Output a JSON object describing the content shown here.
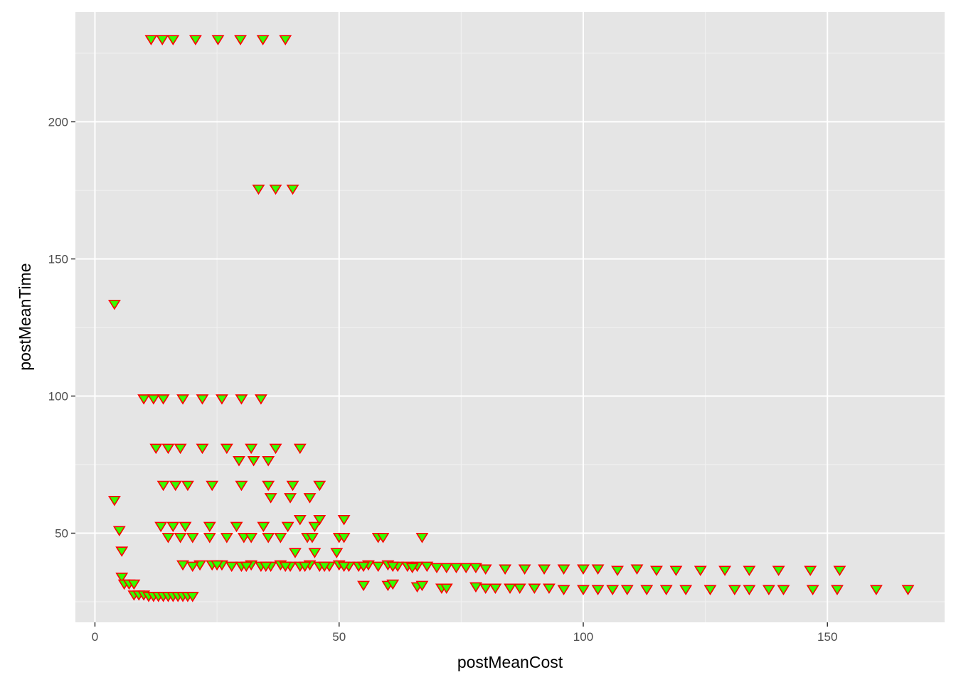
{
  "chart_data": {
    "type": "scatter",
    "title": "",
    "xlabel": "postMeanCost",
    "ylabel": "postMeanTime",
    "xlim": [
      -4,
      174
    ],
    "ylim": [
      17.5,
      240
    ],
    "x_ticks": [
      0,
      50,
      100,
      150
    ],
    "y_ticks": [
      50,
      100,
      150,
      200
    ],
    "x_tick_labels": [
      "0",
      "50",
      "100",
      "150"
    ],
    "y_tick_labels": [
      "50",
      "100",
      "150",
      "200"
    ],
    "grid": true,
    "legend": "none",
    "marker": "triangle-down",
    "colors": {
      "panel_background": "#E5E5E5",
      "grid_major": "#FFFFFF",
      "grid_minor": "#F2F2F2",
      "point_fill": "#33FF00",
      "point_stroke": "#FF0000",
      "tick_mark": "#333333"
    },
    "points": [
      [
        11.5,
        230
      ],
      [
        13.8,
        230
      ],
      [
        16,
        230
      ],
      [
        20.6,
        230
      ],
      [
        25.2,
        230
      ],
      [
        29.8,
        230
      ],
      [
        34.4,
        230
      ],
      [
        39,
        230
      ],
      [
        33.5,
        175.5
      ],
      [
        37,
        175.5
      ],
      [
        40.5,
        175.5
      ],
      [
        4,
        133.5
      ],
      [
        10,
        99
      ],
      [
        12,
        99
      ],
      [
        14,
        99
      ],
      [
        18,
        99
      ],
      [
        22,
        99
      ],
      [
        26,
        99
      ],
      [
        30,
        99
      ],
      [
        34,
        99
      ],
      [
        12.5,
        81
      ],
      [
        15,
        81
      ],
      [
        17.5,
        81
      ],
      [
        22,
        81
      ],
      [
        27,
        81
      ],
      [
        32,
        81
      ],
      [
        37,
        81
      ],
      [
        42,
        81
      ],
      [
        29.5,
        76.5
      ],
      [
        32.5,
        76.5
      ],
      [
        35.5,
        76.5
      ],
      [
        14,
        67.5
      ],
      [
        16.5,
        67.5
      ],
      [
        19,
        67.5
      ],
      [
        24,
        67.5
      ],
      [
        30,
        67.5
      ],
      [
        35.5,
        67.5
      ],
      [
        40.5,
        67.5
      ],
      [
        46,
        67.5
      ],
      [
        36,
        63
      ],
      [
        40,
        63
      ],
      [
        44,
        63
      ],
      [
        4,
        62
      ],
      [
        42,
        55
      ],
      [
        46,
        55
      ],
      [
        51,
        55
      ],
      [
        13.5,
        52.5
      ],
      [
        16,
        52.5
      ],
      [
        18.5,
        52.5
      ],
      [
        23.5,
        52.5
      ],
      [
        29,
        52.5
      ],
      [
        34.5,
        52.5
      ],
      [
        39.5,
        52.5
      ],
      [
        45,
        52.5
      ],
      [
        5,
        51
      ],
      [
        15,
        48.5
      ],
      [
        17.5,
        48.5
      ],
      [
        20,
        48.5
      ],
      [
        23.5,
        48.5
      ],
      [
        27,
        48.5
      ],
      [
        30.5,
        48.5
      ],
      [
        32,
        48.5
      ],
      [
        35.5,
        48.5
      ],
      [
        38,
        48.5
      ],
      [
        43.5,
        48.5
      ],
      [
        44.5,
        48.5
      ],
      [
        50,
        48.5
      ],
      [
        51,
        48.5
      ],
      [
        58,
        48.5
      ],
      [
        59,
        48.5
      ],
      [
        67,
        48.5
      ],
      [
        5.5,
        43.5
      ],
      [
        41,
        43
      ],
      [
        45,
        43
      ],
      [
        49.5,
        43
      ],
      [
        18,
        38.5
      ],
      [
        21.5,
        38.5
      ],
      [
        24,
        38.5
      ],
      [
        26,
        38.5
      ],
      [
        28,
        38
      ],
      [
        30,
        38
      ],
      [
        32,
        38.5
      ],
      [
        34,
        38
      ],
      [
        36,
        38
      ],
      [
        38,
        38.5
      ],
      [
        40,
        38
      ],
      [
        42,
        38
      ],
      [
        44,
        38.5
      ],
      [
        46,
        38
      ],
      [
        48,
        38
      ],
      [
        50,
        38.5
      ],
      [
        52,
        38
      ],
      [
        54,
        38
      ],
      [
        56,
        38.5
      ],
      [
        58,
        38
      ],
      [
        60,
        38.5
      ],
      [
        62,
        38
      ],
      [
        64,
        38
      ],
      [
        66,
        38
      ],
      [
        68,
        38
      ],
      [
        70,
        37.5
      ],
      [
        72,
        37.5
      ],
      [
        74,
        37.5
      ],
      [
        76,
        37.5
      ],
      [
        78,
        37.5
      ],
      [
        80,
        37
      ],
      [
        84,
        37
      ],
      [
        88,
        37
      ],
      [
        92,
        37
      ],
      [
        96,
        37
      ],
      [
        100,
        37
      ],
      [
        103,
        37
      ],
      [
        107,
        36.5
      ],
      [
        111,
        37
      ],
      [
        115,
        36.5
      ],
      [
        119,
        36.5
      ],
      [
        124,
        36.5
      ],
      [
        129,
        36.5
      ],
      [
        134,
        36.5
      ],
      [
        140,
        36.5
      ],
      [
        146.5,
        36.5
      ],
      [
        152.5,
        36.5
      ],
      [
        20,
        38
      ],
      [
        25,
        38.5
      ],
      [
        31,
        38
      ],
      [
        35,
        38
      ],
      [
        39,
        38
      ],
      [
        43,
        38
      ],
      [
        47,
        38
      ],
      [
        51,
        38
      ],
      [
        55,
        38
      ],
      [
        61,
        38
      ],
      [
        65,
        37.5
      ],
      [
        5.5,
        34
      ],
      [
        6,
        31.5
      ],
      [
        7,
        31.5
      ],
      [
        8,
        31.5
      ],
      [
        55,
        31
      ],
      [
        60,
        31
      ],
      [
        61,
        31.5
      ],
      [
        66,
        30.5
      ],
      [
        67,
        31
      ],
      [
        71,
        30
      ],
      [
        72,
        30
      ],
      [
        78,
        30.5
      ],
      [
        80,
        30
      ],
      [
        82,
        30
      ],
      [
        85,
        30
      ],
      [
        87,
        30
      ],
      [
        90,
        30
      ],
      [
        93,
        30
      ],
      [
        96,
        29.5
      ],
      [
        100,
        29.5
      ],
      [
        103,
        29.5
      ],
      [
        106,
        29.5
      ],
      [
        109,
        29.5
      ],
      [
        113,
        29.5
      ],
      [
        117,
        29.5
      ],
      [
        121,
        29.5
      ],
      [
        126,
        29.5
      ],
      [
        131,
        29.5
      ],
      [
        134,
        29.5
      ],
      [
        138,
        29.5
      ],
      [
        141,
        29.5
      ],
      [
        147,
        29.5
      ],
      [
        152,
        29.5
      ],
      [
        160,
        29.5
      ],
      [
        166.5,
        29.5
      ],
      [
        8,
        27.5
      ],
      [
        9,
        27.5
      ],
      [
        10,
        27.5
      ],
      [
        11,
        27
      ],
      [
        12,
        27
      ],
      [
        13,
        27
      ],
      [
        14,
        27
      ],
      [
        15,
        27
      ],
      [
        16,
        27
      ],
      [
        17,
        27
      ],
      [
        18,
        27
      ],
      [
        19,
        27
      ],
      [
        20,
        27
      ]
    ]
  }
}
